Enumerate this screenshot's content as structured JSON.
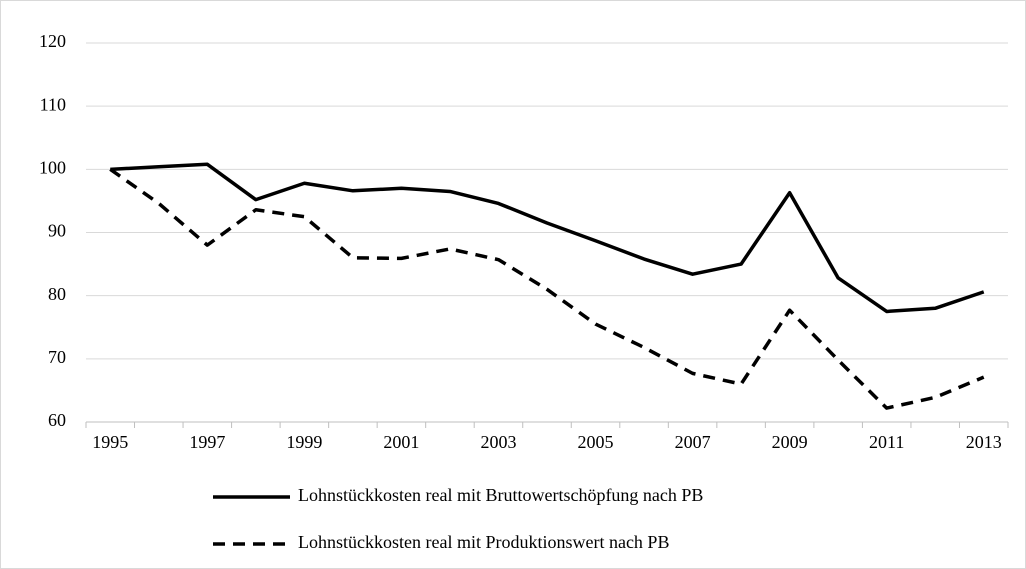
{
  "chart_data": {
    "type": "line",
    "categories": [
      "1995",
      null,
      "1997",
      null,
      "1999",
      null,
      "2001",
      null,
      "2003",
      null,
      "2005",
      null,
      "2007",
      null,
      "2009",
      null,
      "2011",
      null,
      "2013"
    ],
    "series": [
      {
        "name": "Lohnstückkosten real mit Bruttowertschöpfung nach PB",
        "color": "#000000",
        "dash": false,
        "values": [
          100,
          100.4,
          100.8,
          95.2,
          97.8,
          96.6,
          97.0,
          96.5,
          94.6,
          91.5,
          88.7,
          85.8,
          83.4,
          85.0,
          96.3,
          82.8,
          77.5,
          78.0,
          80.6
        ]
      },
      {
        "name": "Lohnstückkosten real mit Produktionswert nach PB",
        "color": "#000000",
        "dash": true,
        "values": [
          100,
          94.6,
          88.0,
          93.6,
          92.5,
          86.0,
          85.9,
          87.4,
          85.7,
          81.0,
          75.5,
          71.8,
          67.7,
          66.0,
          77.7,
          69.8,
          62.2,
          63.9,
          67.1
        ]
      }
    ],
    "ylim": [
      60,
      120
    ],
    "yticks": [
      60,
      70,
      80,
      90,
      100,
      110,
      120
    ],
    "grid": true
  }
}
